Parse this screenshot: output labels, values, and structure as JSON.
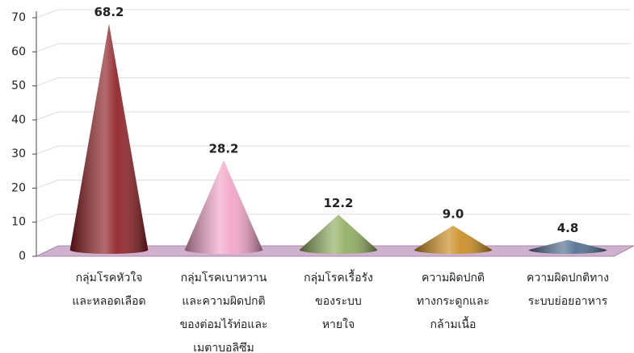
{
  "chart_data": {
    "type": "cone",
    "categories": [
      [
        "กลุ่มโรคหัวใจ",
        "และหลอดเลือด"
      ],
      [
        "กลุ่มโรคเบาหวาน",
        "และความผิดปกติ",
        "ของต่อมไร้ท่อและ",
        "เมตาบอลิซึม"
      ],
      [
        "กลุ่มโรคเรื้อรัง",
        "ของระบบ",
        "หายใจ"
      ],
      [
        "ความผิดปกติ",
        "ทางกระดูกและ",
        "กล้ามเนื้อ"
      ],
      [
        "ความผิดปกติทาง",
        "ระบบย่อยอาหาร"
      ]
    ],
    "values": [
      68.2,
      28.2,
      12.2,
      9.0,
      4.8
    ],
    "value_labels": [
      "68.2",
      "28.2",
      "12.2",
      "9.0",
      "4.8"
    ],
    "colors": [
      "#8b1a1f",
      "#f2a3c6",
      "#8cab5c",
      "#c98a1c",
      "#4d6a8c"
    ],
    "ylim": [
      0,
      70
    ],
    "yticks": [
      0,
      10,
      20,
      30,
      40,
      50,
      60,
      70
    ],
    "grid": true
  }
}
